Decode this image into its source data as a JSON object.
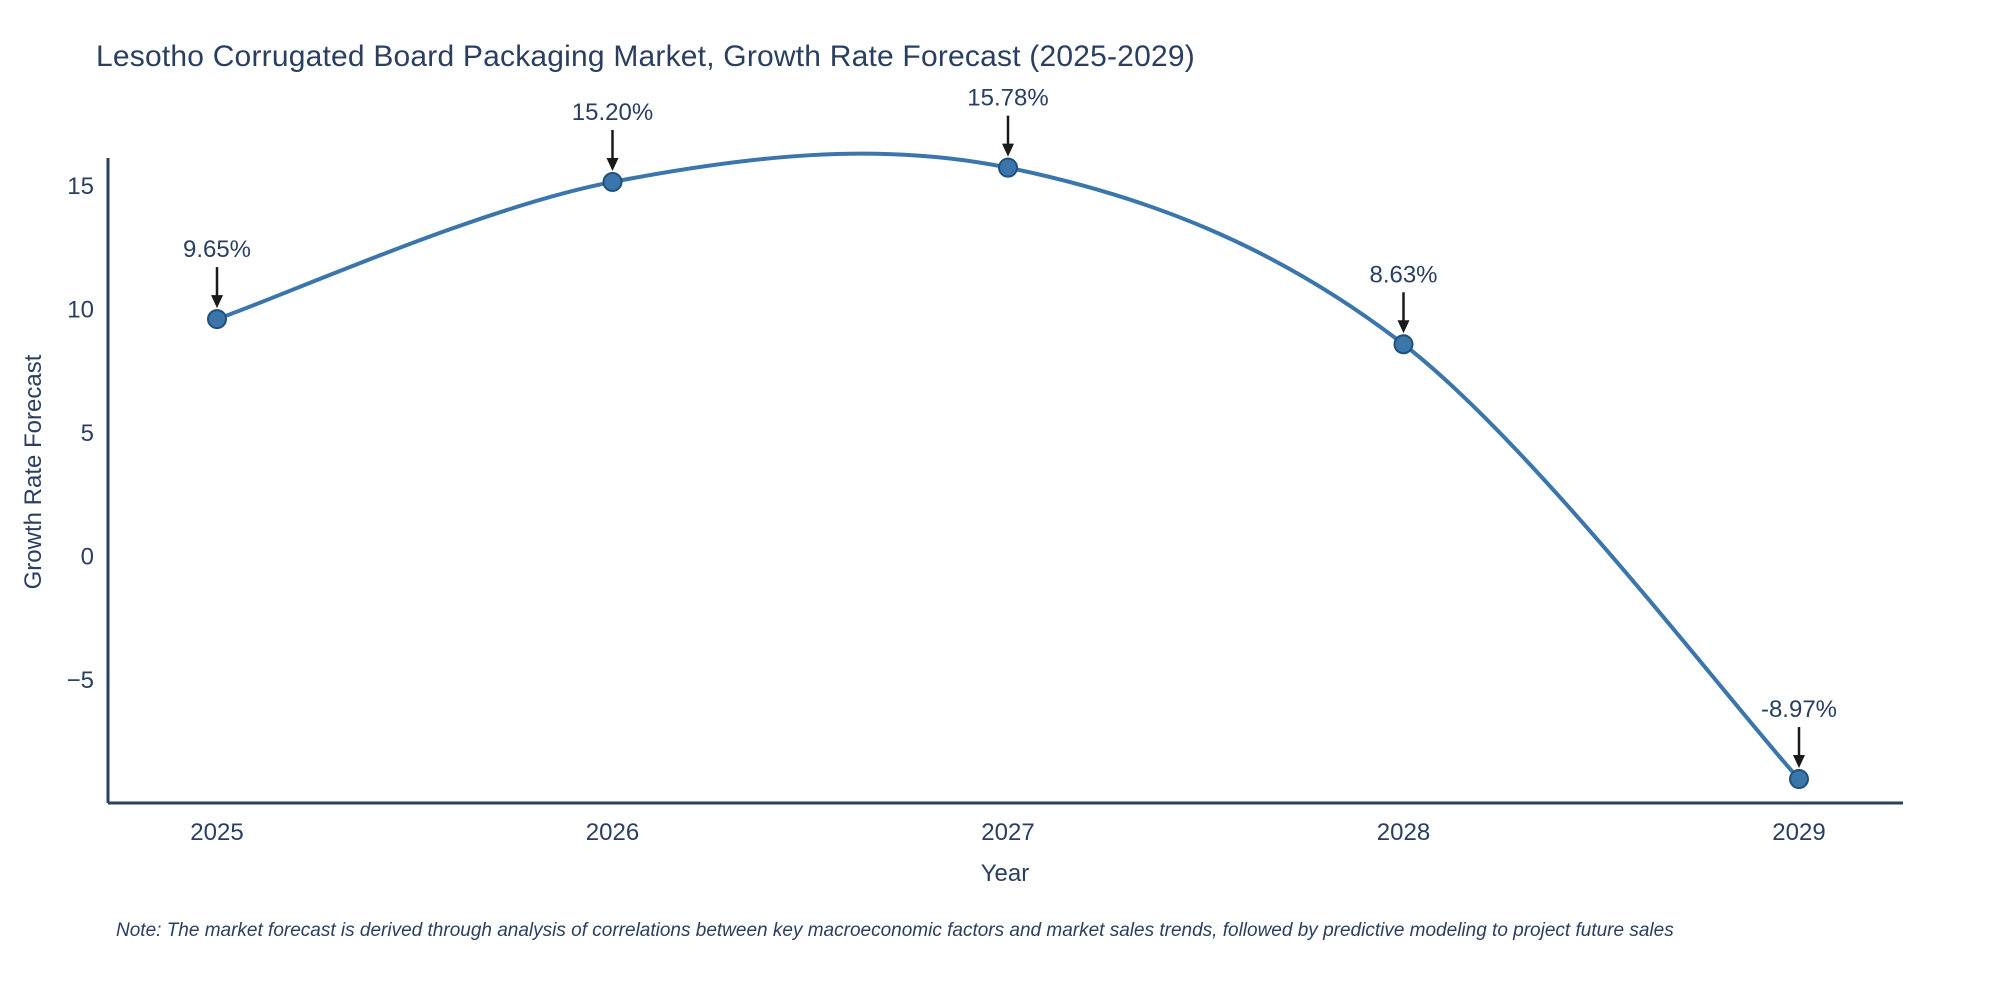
{
  "title": "Lesotho Corrugated Board Packaging Market, Growth Rate Forecast (2025-2029)",
  "note": "Note: The market forecast is derived through analysis of correlations between key macroeconomic factors and market sales trends, followed by predictive modeling to project future sales",
  "chart_data": {
    "type": "line",
    "title": "Lesotho Corrugated Board Packaging Market, Growth Rate Forecast (2025-2029)",
    "x": [
      "2025",
      "2026",
      "2027",
      "2028",
      "2029"
    ],
    "values": [
      9.65,
      15.2,
      15.78,
      8.63,
      -8.97
    ],
    "point_labels": [
      "9.65%",
      "15.20%",
      "15.78%",
      "8.63%",
      "-8.97%"
    ],
    "xlabel": "Year",
    "ylabel": "Growth Rate Forecast",
    "ylim": [
      -9.94,
      16.17
    ],
    "yticks": [
      15,
      10,
      5,
      0,
      -5
    ],
    "line_shape": "spline",
    "grid": false,
    "legend": "none",
    "colors": {
      "line": "#3a76ab",
      "marker": "#3a76ab",
      "marker_edge": "#205179",
      "axis": "#2a3f5f",
      "tick_text": "#2a3f5f",
      "annotation_text": "#2a3f5f",
      "arrow": "#1a1a1a",
      "background": "#ffffff"
    }
  }
}
